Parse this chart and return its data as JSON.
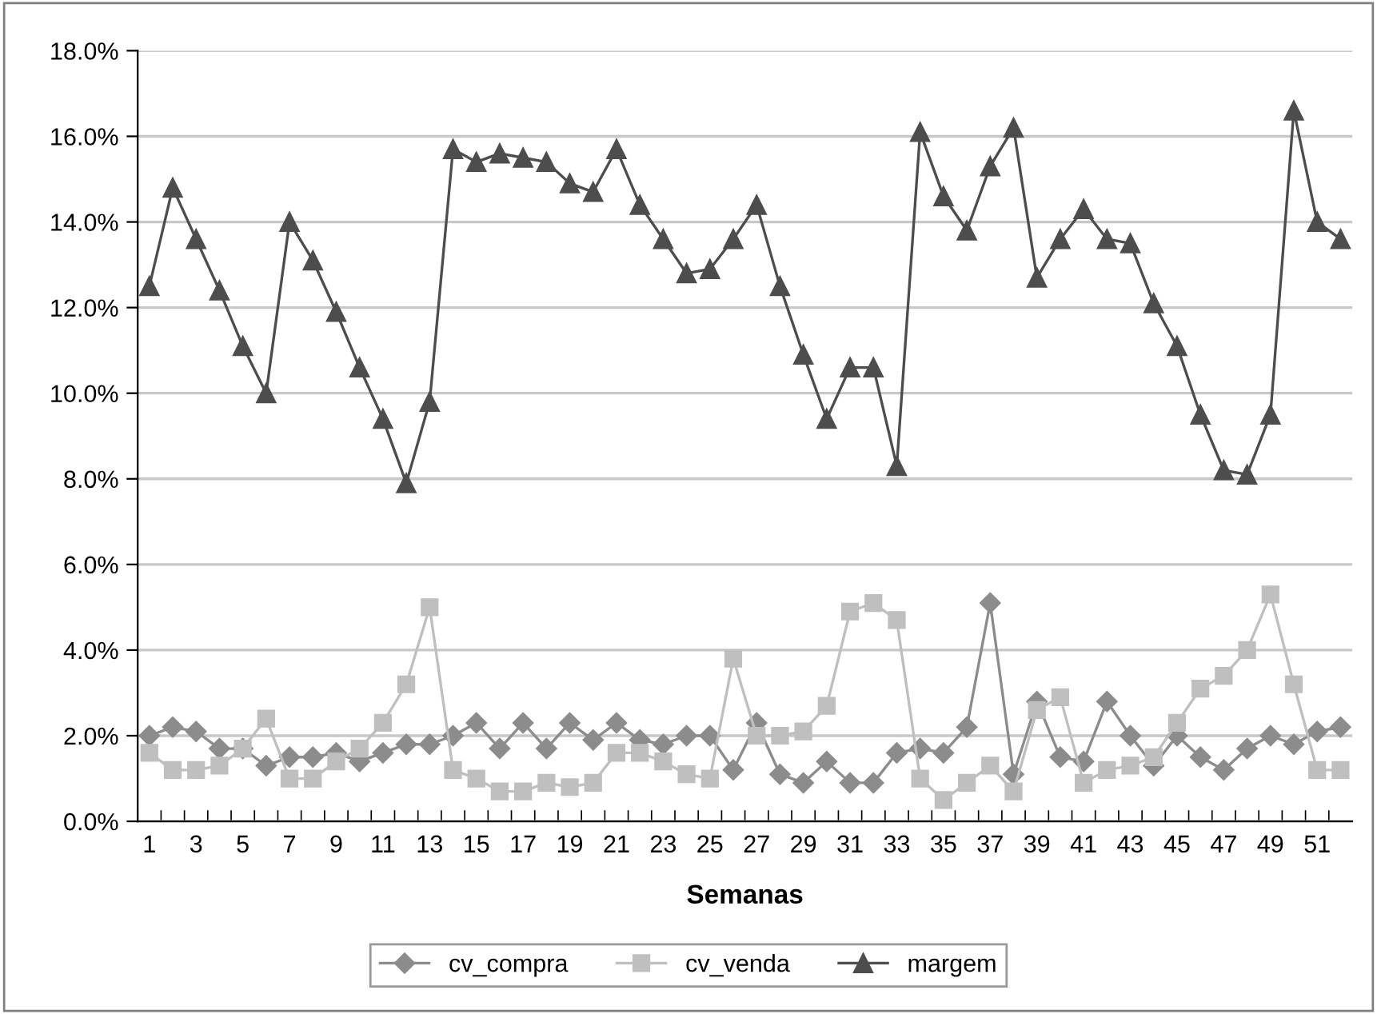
{
  "chart_data": {
    "type": "line",
    "xlabel": "Semanas",
    "categories": [
      "1",
      null,
      "3",
      null,
      "5",
      null,
      "7",
      null,
      "9",
      null,
      "11",
      null,
      "13",
      null,
      "15",
      null,
      "17",
      null,
      "19",
      null,
      "21",
      null,
      "23",
      null,
      "25",
      null,
      "27",
      null,
      "29",
      null,
      "31",
      null,
      "33",
      null,
      "35",
      null,
      "37",
      null,
      "39",
      null,
      "41",
      null,
      "43",
      null,
      "45",
      null,
      "47",
      null,
      "49",
      null,
      "51",
      null
    ],
    "series": [
      {
        "name": "cv_compra",
        "color": "#8c8c8c",
        "marker": "diamond",
        "values": [
          2.0,
          2.2,
          2.1,
          1.7,
          1.7,
          1.3,
          1.5,
          1.5,
          1.6,
          1.4,
          1.6,
          1.8,
          1.8,
          2.0,
          2.3,
          1.7,
          2.3,
          1.7,
          2.3,
          1.9,
          2.3,
          1.9,
          1.8,
          2.0,
          2.0,
          1.2,
          2.3,
          1.1,
          0.9,
          1.4,
          0.9,
          0.9,
          1.6,
          1.7,
          1.6,
          2.2,
          5.1,
          1.1,
          2.8,
          1.5,
          1.4,
          2.8,
          2.0,
          1.3,
          2.0,
          1.5,
          1.2,
          1.7,
          2.0,
          1.8,
          2.1,
          2.2
        ]
      },
      {
        "name": "cv_venda",
        "color": "#bfbfbf",
        "marker": "square",
        "values": [
          1.6,
          1.2,
          1.2,
          1.3,
          1.7,
          2.4,
          1.0,
          1.0,
          1.4,
          1.7,
          2.3,
          3.2,
          5.0,
          1.2,
          1.0,
          0.7,
          0.7,
          0.9,
          0.8,
          0.9,
          1.6,
          1.6,
          1.4,
          1.1,
          1.0,
          3.8,
          2.0,
          2.0,
          2.1,
          2.7,
          4.9,
          5.1,
          4.7,
          1.0,
          0.5,
          0.9,
          1.3,
          0.7,
          2.6,
          2.9,
          0.9,
          1.2,
          1.3,
          1.5,
          2.3,
          3.1,
          3.4,
          4.0,
          5.3,
          3.2,
          1.2,
          1.2
        ]
      },
      {
        "name": "margem",
        "color": "#4d4d4d",
        "marker": "triangle",
        "values": [
          12.5,
          14.8,
          13.6,
          12.4,
          11.1,
          10.0,
          14.0,
          13.1,
          11.9,
          10.6,
          9.4,
          7.9,
          9.8,
          15.7,
          15.4,
          15.6,
          15.5,
          15.4,
          14.9,
          14.7,
          15.7,
          14.4,
          13.6,
          12.8,
          12.9,
          13.6,
          14.4,
          12.5,
          10.9,
          9.4,
          10.6,
          10.6,
          8.3,
          16.1,
          14.6,
          13.8,
          15.3,
          16.2,
          12.7,
          13.6,
          14.3,
          13.6,
          13.5,
          12.1,
          11.1,
          9.5,
          8.2,
          8.1,
          9.5,
          16.6,
          14.0,
          13.6
        ]
      }
    ],
    "ylim": [
      0,
      18
    ],
    "yticks": [
      {
        "value": 0,
        "label": "0.0%"
      },
      {
        "value": 2,
        "label": "2.0%"
      },
      {
        "value": 4,
        "label": "4.0%"
      },
      {
        "value": 6,
        "label": "6.0%"
      },
      {
        "value": 8,
        "label": "8.0%"
      },
      {
        "value": 10,
        "label": "10.0%"
      },
      {
        "value": 12,
        "label": "12.0%"
      },
      {
        "value": 14,
        "label": "14.0%"
      },
      {
        "value": 16,
        "label": "16.0%"
      },
      {
        "value": 18,
        "label": "18.0%"
      }
    ],
    "grid": "y",
    "legend": "bottom",
    "line_style": "solid"
  }
}
